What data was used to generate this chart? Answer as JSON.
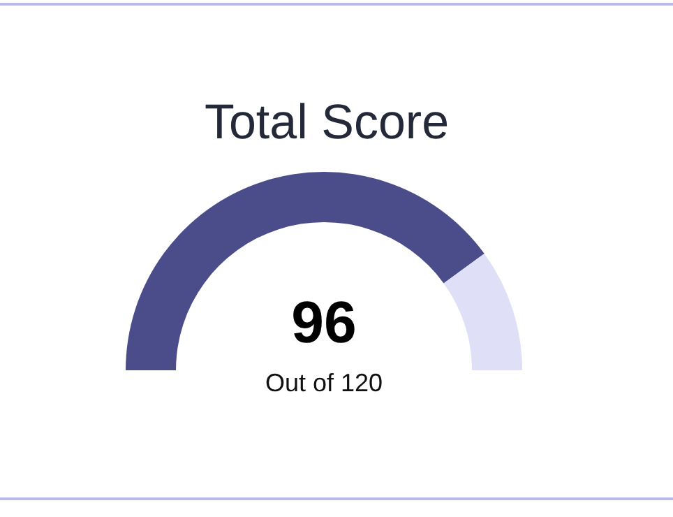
{
  "chart_data": {
    "type": "donut",
    "title": "Total Score",
    "categories": [
      null,
      null
    ],
    "values": [
      80,
      20
    ],
    "colors": [
      "#4b4d8a",
      "#dfdff8"
    ],
    "annotations": [
      "96",
      "Out of 120"
    ]
  }
}
